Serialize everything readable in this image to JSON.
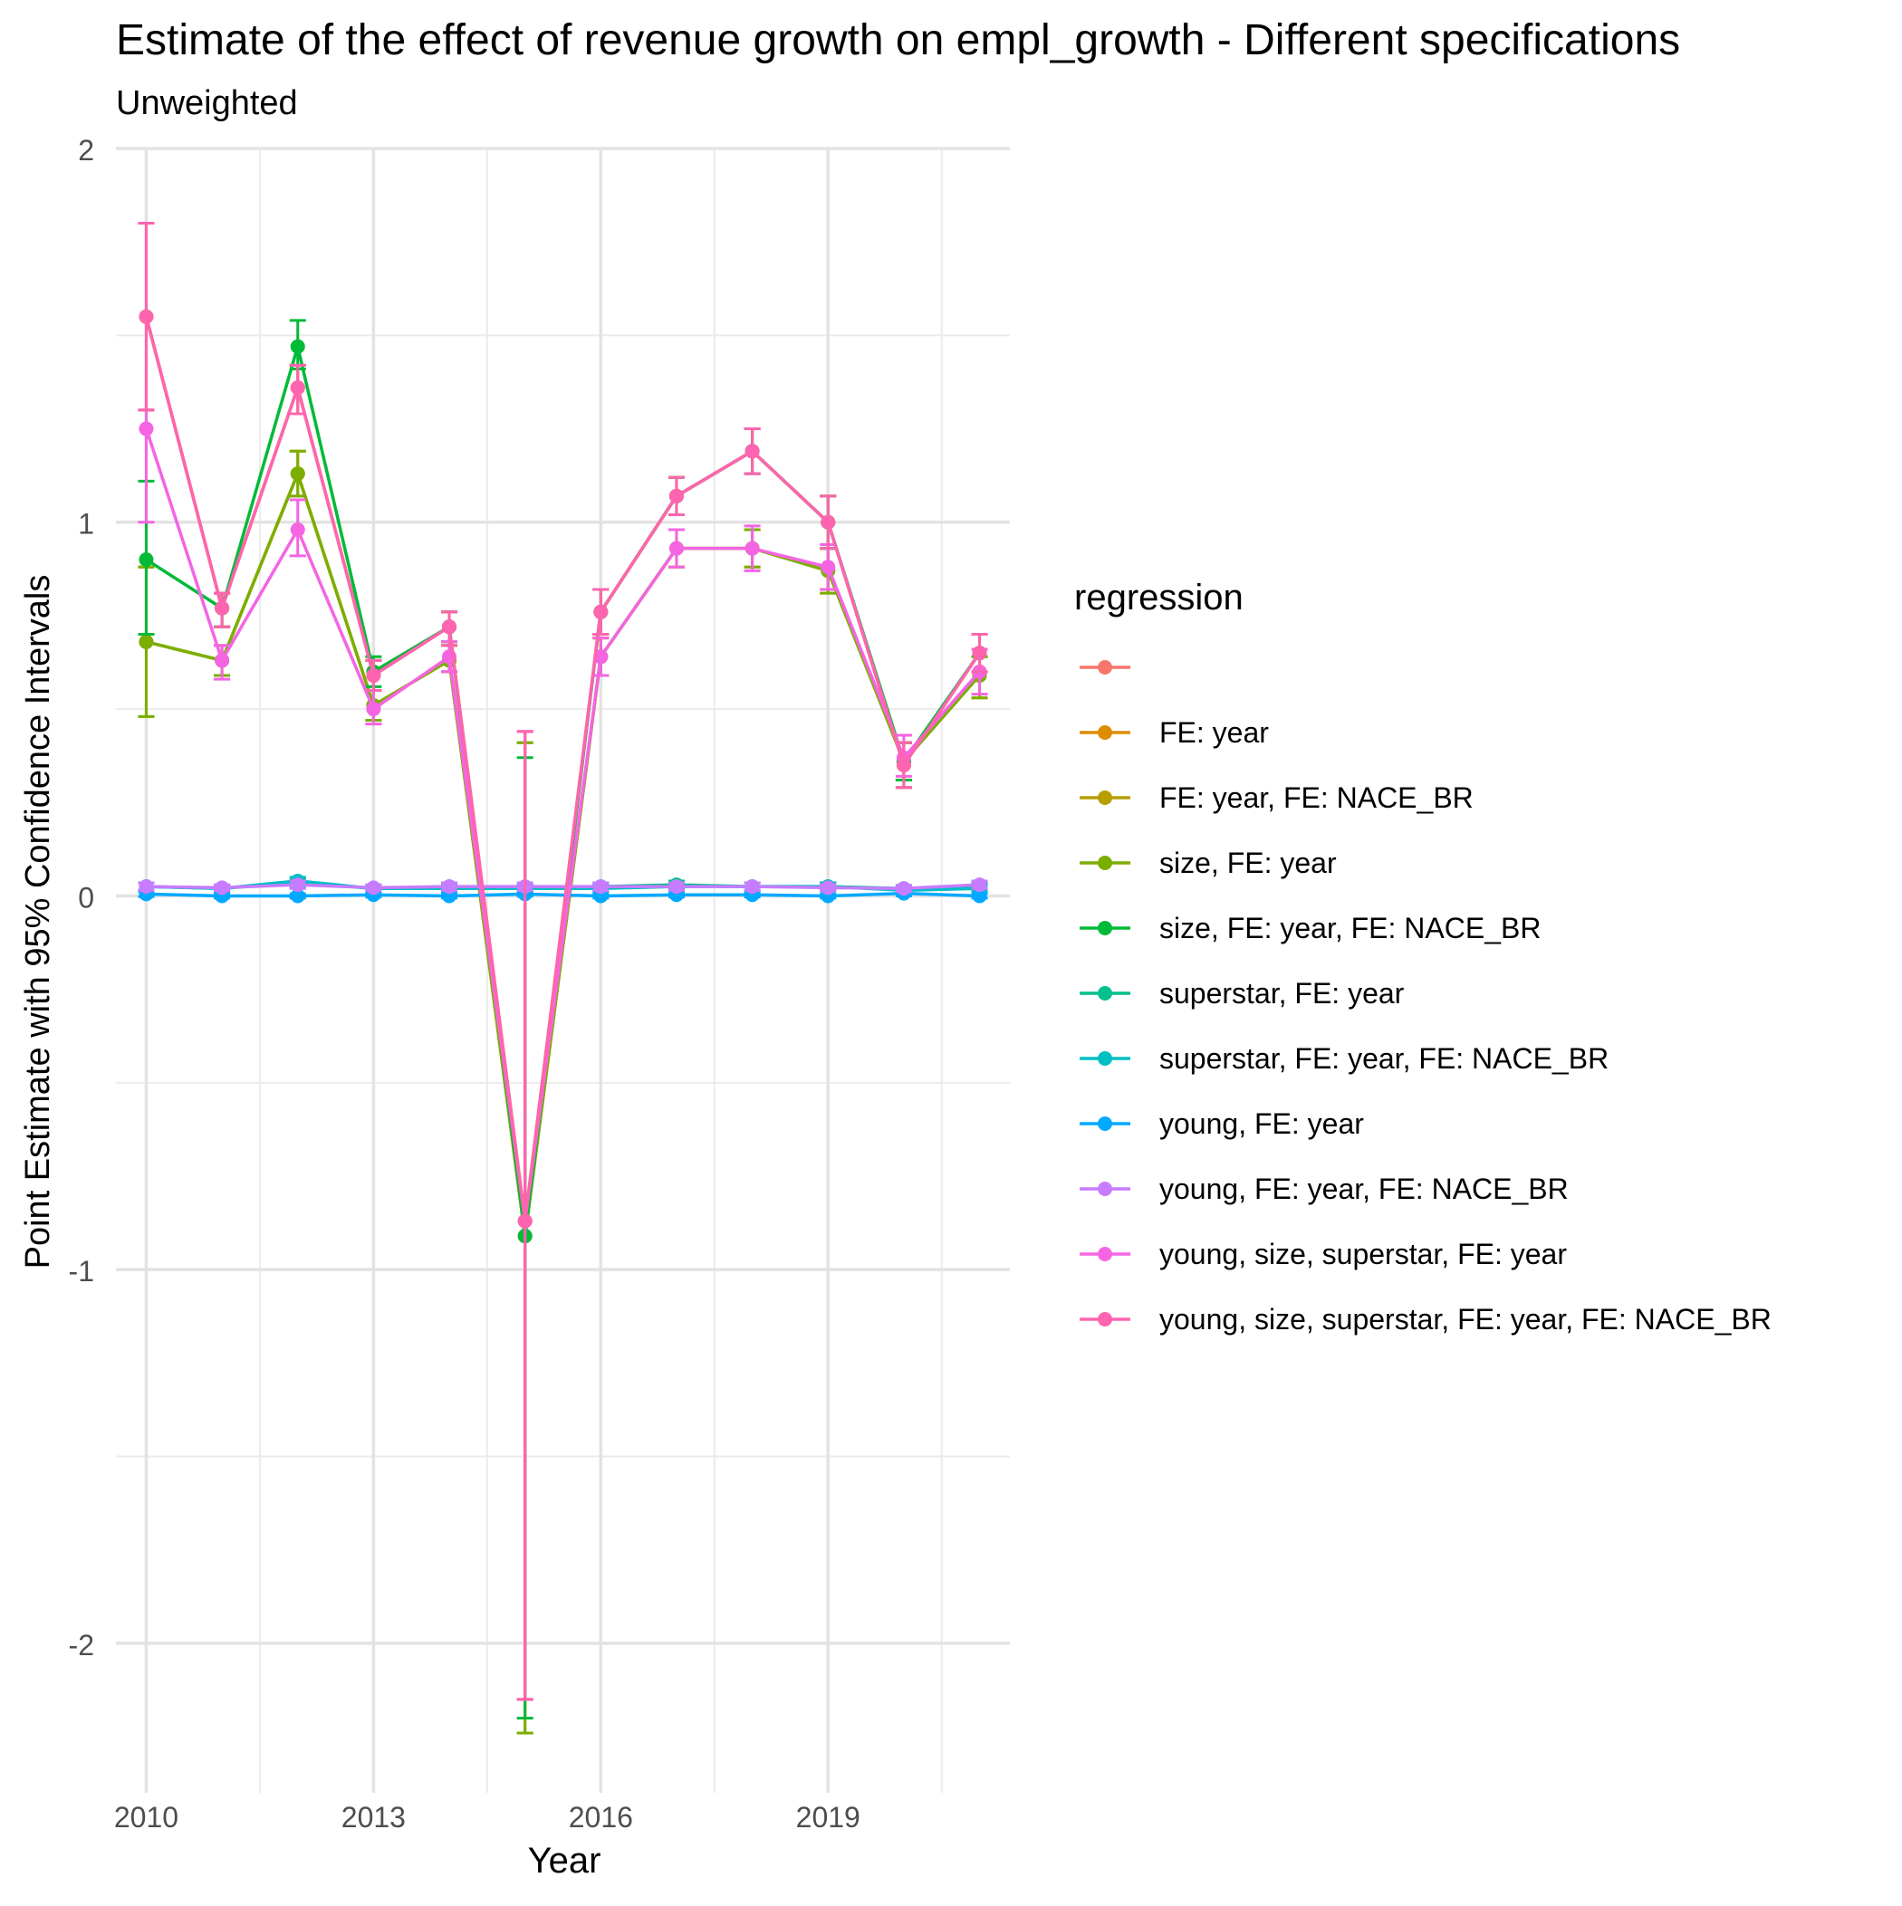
{
  "chart_data": {
    "type": "line",
    "title": "Estimate of the effect of revenue growth on empl_growth - Different specifications",
    "subtitle": "Unweighted",
    "xlabel": "Year",
    "ylabel": "Point Estimate with 95% Confidence Intervals",
    "xlim": [
      2009.6,
      2021.4
    ],
    "ylim": [
      -2.4,
      2.0
    ],
    "x_ticks": [
      2010,
      2013,
      2016,
      2019
    ],
    "y_ticks": [
      -2,
      -1,
      0,
      1,
      2
    ],
    "y_tick_labels": [
      "-2",
      "-1",
      "0",
      "1",
      "2"
    ],
    "grid": true,
    "legend_title": "regression",
    "legend_position": "right",
    "x": [
      2010,
      2011,
      2012,
      2013,
      2014,
      2015,
      2016,
      2017,
      2018,
      2019,
      2020,
      2021
    ],
    "series": [
      {
        "name": "",
        "color": "#F8766D",
        "values": [
          1.55,
          0.77,
          1.36,
          0.59,
          0.72,
          -0.87,
          0.76,
          1.07,
          1.19,
          1.0,
          0.35,
          0.65
        ],
        "lower": [
          1.3,
          0.72,
          1.29,
          0.55,
          0.67,
          -2.15,
          0.7,
          1.02,
          1.13,
          0.93,
          0.29,
          0.6
        ],
        "upper": [
          1.8,
          0.81,
          1.42,
          0.63,
          0.76,
          0.44,
          0.82,
          1.12,
          1.25,
          1.07,
          0.41,
          0.7
        ]
      },
      {
        "name": "FE: year",
        "color": "#DE8C00",
        "values": [
          1.55,
          0.77,
          1.36,
          0.59,
          0.72,
          -0.87,
          0.76,
          1.07,
          1.19,
          1.0,
          0.35,
          0.65
        ],
        "lower": [
          1.3,
          0.72,
          1.29,
          0.55,
          0.67,
          -2.15,
          0.7,
          1.02,
          1.13,
          0.93,
          0.29,
          0.6
        ],
        "upper": [
          1.8,
          0.81,
          1.42,
          0.63,
          0.76,
          0.44,
          0.82,
          1.12,
          1.25,
          1.07,
          0.41,
          0.7
        ]
      },
      {
        "name": "FE: year, FE: NACE_BR",
        "color": "#B79F00",
        "values": [
          0.68,
          0.63,
          1.13,
          0.51,
          0.63,
          -0.91,
          0.64,
          0.93,
          0.93,
          0.87,
          0.36,
          0.59
        ],
        "lower": [
          0.48,
          0.59,
          1.07,
          0.47,
          0.6,
          -2.24,
          0.59,
          0.88,
          0.88,
          0.81,
          0.31,
          0.53
        ],
        "upper": [
          0.88,
          0.67,
          1.19,
          0.55,
          0.67,
          0.41,
          0.69,
          0.98,
          0.98,
          0.93,
          0.41,
          0.64
        ]
      },
      {
        "name": "size, FE: year",
        "color": "#7CAE00",
        "values": [
          0.68,
          0.63,
          1.13,
          0.51,
          0.63,
          -0.91,
          0.64,
          0.93,
          0.93,
          0.87,
          0.36,
          0.59
        ],
        "lower": [
          0.48,
          0.59,
          1.07,
          0.47,
          0.6,
          -2.24,
          0.59,
          0.88,
          0.88,
          0.81,
          0.31,
          0.53
        ],
        "upper": [
          0.88,
          0.67,
          1.19,
          0.55,
          0.67,
          0.41,
          0.69,
          0.98,
          0.98,
          0.93,
          0.41,
          0.64
        ]
      },
      {
        "name": "size, FE: year, FE: NACE_BR",
        "color": "#00BA38",
        "values": [
          0.9,
          0.77,
          1.47,
          0.6,
          0.72,
          -0.91,
          0.76,
          1.07,
          1.19,
          1.0,
          0.36,
          0.65
        ],
        "lower": [
          0.7,
          0.72,
          1.41,
          0.56,
          0.68,
          -2.2,
          0.7,
          1.02,
          1.13,
          0.93,
          0.31,
          0.6
        ],
        "upper": [
          1.11,
          0.81,
          1.54,
          0.64,
          0.76,
          0.37,
          0.82,
          1.12,
          1.25,
          1.07,
          0.41,
          0.7
        ]
      },
      {
        "name": "superstar, FE: year",
        "color": "#00C08B",
        "values": [
          0.025,
          0.02,
          0.035,
          0.02,
          0.025,
          0.02,
          0.025,
          0.03,
          0.025,
          0.025,
          0.02,
          0.025
        ],
        "lower": [
          0.015,
          0.012,
          0.025,
          0.012,
          0.015,
          0.012,
          0.015,
          0.02,
          0.015,
          0.015,
          0.012,
          0.015
        ],
        "upper": [
          0.035,
          0.028,
          0.045,
          0.028,
          0.035,
          0.028,
          0.035,
          0.04,
          0.035,
          0.035,
          0.028,
          0.035
        ]
      },
      {
        "name": "superstar, FE: year, FE: NACE_BR",
        "color": "#00BFC4",
        "values": [
          0.025,
          0.02,
          0.04,
          0.02,
          0.02,
          0.02,
          0.02,
          0.025,
          0.025,
          0.025,
          0.015,
          0.02
        ],
        "lower": [
          0.015,
          0.012,
          0.03,
          0.012,
          0.012,
          0.012,
          0.012,
          0.015,
          0.015,
          0.015,
          0.008,
          0.012
        ],
        "upper": [
          0.035,
          0.028,
          0.05,
          0.028,
          0.028,
          0.028,
          0.028,
          0.035,
          0.035,
          0.035,
          0.022,
          0.028
        ]
      },
      {
        "name": "young, FE: year",
        "color": "#00A9FF",
        "values": [
          0.005,
          0.0,
          0.0,
          0.003,
          0.0,
          0.005,
          0.0,
          0.003,
          0.003,
          0.0,
          0.007,
          0.0
        ],
        "lower": [
          -0.002,
          -0.006,
          -0.006,
          -0.003,
          -0.006,
          -0.001,
          -0.006,
          -0.003,
          -0.003,
          -0.006,
          0.0,
          -0.006
        ],
        "upper": [
          0.012,
          0.006,
          0.006,
          0.009,
          0.006,
          0.011,
          0.006,
          0.009,
          0.009,
          0.006,
          0.014,
          0.006
        ]
      },
      {
        "name": "young, FE: year, FE: NACE_BR",
        "color": "#C77CFF",
        "values": [
          0.025,
          0.022,
          0.03,
          0.022,
          0.025,
          0.025,
          0.025,
          0.025,
          0.025,
          0.022,
          0.02,
          0.03
        ],
        "lower": [
          0.015,
          0.014,
          0.02,
          0.014,
          0.015,
          0.015,
          0.015,
          0.015,
          0.015,
          0.014,
          0.012,
          0.02
        ],
        "upper": [
          0.035,
          0.03,
          0.04,
          0.03,
          0.035,
          0.035,
          0.035,
          0.035,
          0.035,
          0.03,
          0.028,
          0.04
        ]
      },
      {
        "name": "young, size, superstar, FE: year",
        "color": "#F564E3",
        "values": [
          1.25,
          0.63,
          0.98,
          0.5,
          0.64,
          -0.87,
          0.64,
          0.93,
          0.93,
          0.88,
          0.37,
          0.6
        ],
        "lower": [
          1.0,
          0.58,
          0.91,
          0.46,
          0.6,
          -2.15,
          0.59,
          0.88,
          0.87,
          0.82,
          0.32,
          0.54
        ],
        "upper": [
          1.3,
          0.67,
          1.06,
          0.55,
          0.68,
          0.44,
          0.69,
          0.98,
          0.99,
          0.94,
          0.43,
          0.66
        ]
      },
      {
        "name": "young, size, superstar, FE: year, FE: NACE_BR",
        "color": "#FF64B0",
        "values": [
          1.55,
          0.77,
          1.36,
          0.59,
          0.72,
          -0.87,
          0.76,
          1.07,
          1.19,
          1.0,
          0.35,
          0.65
        ],
        "lower": [
          1.3,
          0.72,
          1.29,
          0.55,
          0.67,
          -2.15,
          0.7,
          1.02,
          1.13,
          0.93,
          0.29,
          0.6
        ],
        "upper": [
          1.8,
          0.81,
          1.42,
          0.63,
          0.76,
          0.44,
          0.82,
          1.12,
          1.25,
          1.07,
          0.41,
          0.7
        ]
      }
    ]
  }
}
